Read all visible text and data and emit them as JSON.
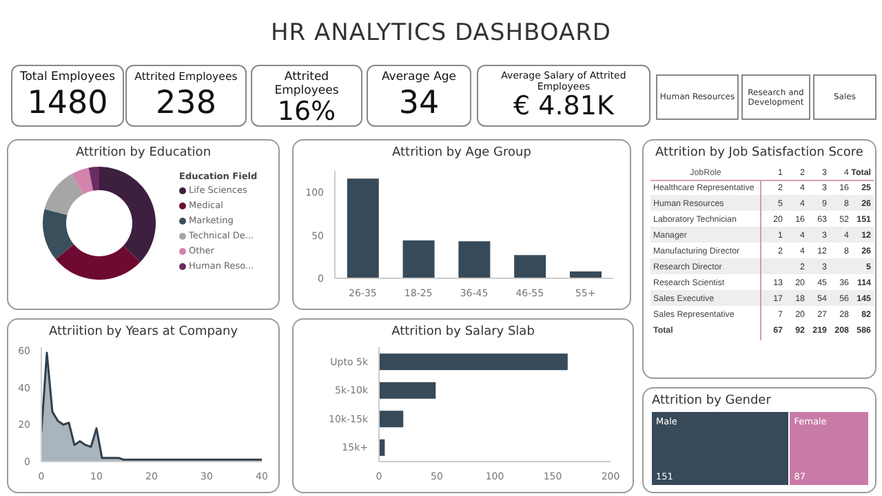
{
  "chart_data": [
    {
      "type": "other",
      "title": "HR ANALYTICS DASHBOARD",
      "categories": [
        "Total Employees",
        "Attrited Employees",
        "Attrited Employees",
        "Average Age",
        "Average Salary of Attrited Employees"
      ],
      "value_labels": [
        "1480",
        "238",
        "16%",
        "34",
        "€ 4.81K"
      ],
      "annotations": [
        "Human Resources",
        "Research and Development",
        "Sales"
      ]
    },
    {
      "type": "donut",
      "title": "Attrition by Education",
      "legend_title": "Education Field",
      "legend": "right",
      "categories": [
        "Life Sciences",
        "Medical",
        "Marketing",
        "Technical De...",
        "Other",
        "Human Reso..."
      ],
      "values": [
        37,
        27,
        15,
        13,
        5,
        3
      ],
      "colors": [
        "#3d1f40",
        "#6e0a31",
        "#3a4f5c",
        "#a6a6a6",
        "#d284ad",
        "#6a2c62"
      ]
    },
    {
      "type": "bar",
      "title": "Attrition by Age Group",
      "categories": [
        "26-35",
        "18-25",
        "36-45",
        "46-55",
        "55+"
      ],
      "values": [
        116,
        44,
        43,
        27,
        8
      ],
      "color": "#374a59",
      "ylim": [
        0,
        125
      ],
      "yticks": [
        0,
        50,
        100
      ]
    },
    {
      "type": "heatmap",
      "title": "Attrition by Job Satisfaction Score",
      "ylabel": "JobRole",
      "categories": [
        "1",
        "2",
        "3",
        "4",
        "Total"
      ],
      "data_labels": true,
      "y_categories": [
        "Healthcare Representative",
        "Human Resources",
        "Laboratory Technician",
        "Manager",
        "Manufacturing Director",
        "Research Director",
        "Research Scientist",
        "Sales Executive",
        "Sales Representative",
        "Total"
      ],
      "cells": [
        [
          2,
          4,
          3,
          16,
          25
        ],
        [
          5,
          4,
          9,
          8,
          26
        ],
        [
          20,
          16,
          63,
          52,
          151
        ],
        [
          1,
          4,
          3,
          4,
          12
        ],
        [
          2,
          4,
          12,
          8,
          26
        ],
        [
          null,
          2,
          3,
          null,
          5
        ],
        [
          13,
          20,
          45,
          36,
          114
        ],
        [
          17,
          18,
          54,
          56,
          145
        ],
        [
          7,
          20,
          27,
          28,
          82
        ],
        [
          67,
          92,
          219,
          208,
          586
        ]
      ]
    },
    {
      "type": "area",
      "title": "Attriition by Years at Company",
      "x": [
        0,
        1,
        2,
        3,
        4,
        5,
        6,
        7,
        8,
        9,
        10,
        11,
        12,
        13,
        14,
        15,
        20,
        25,
        30,
        35,
        40
      ],
      "values": [
        16,
        59,
        27,
        22,
        20,
        21,
        9,
        11,
        9,
        8,
        18,
        2,
        2,
        2,
        2,
        1,
        1,
        1,
        1,
        1,
        1
      ],
      "color": "#2f3f4c",
      "xlim": [
        0,
        40
      ],
      "xticks": [
        0,
        10,
        20,
        30,
        40
      ],
      "ylim": [
        0,
        62
      ],
      "yticks": [
        0,
        20,
        40,
        60
      ],
      "marker": "none"
    },
    {
      "type": "bar",
      "orientation": "horizontal",
      "title": "Attrition by Salary Slab",
      "categories": [
        "Upto 5k",
        "5k-10k",
        "10k-15k",
        "15k+"
      ],
      "values": [
        163,
        49,
        21,
        5
      ],
      "color": "#374a59",
      "xlim": [
        0,
        200
      ],
      "xticks": [
        0,
        50,
        100,
        150,
        200
      ]
    },
    {
      "type": "other",
      "title": "Attrition by Gender",
      "categories": [
        "Male",
        "Female"
      ],
      "values": [
        151,
        87
      ],
      "colors": [
        "#374a59",
        "#c97ba7"
      ],
      "data_labels": true
    }
  ]
}
